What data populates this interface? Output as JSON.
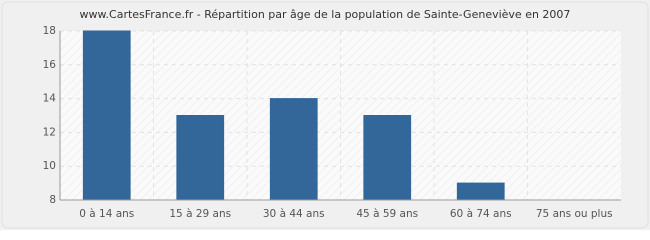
{
  "chart_data": {
    "type": "bar",
    "title": "www.CartesFrance.fr - Répartition par âge de la population de Sainte-Geneviève en 2007",
    "categories": [
      "0 à 14 ans",
      "15 à 29 ans",
      "30 à 44 ans",
      "45 à 59 ans",
      "60 à 74 ans",
      "75 ans ou plus"
    ],
    "values": [
      18,
      13,
      14,
      13,
      9,
      8
    ],
    "color": "#336699",
    "ylim": [
      8,
      18
    ],
    "yticks": [
      8,
      10,
      12,
      14,
      16,
      18
    ],
    "grid": true
  }
}
